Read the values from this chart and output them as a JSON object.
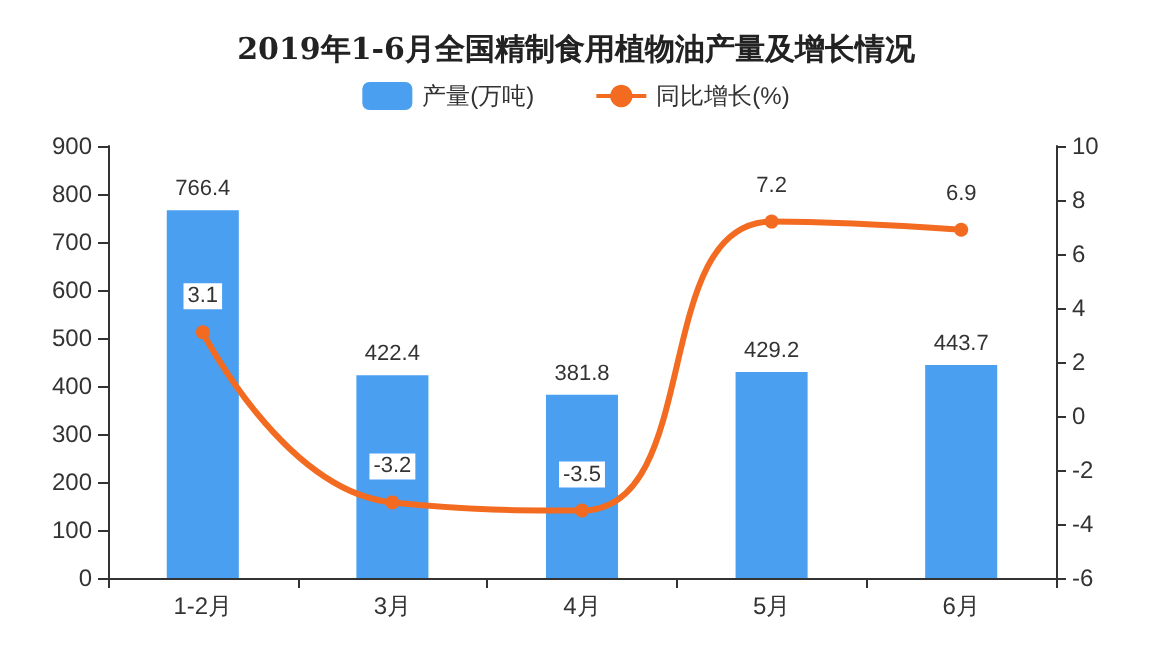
{
  "chart_data": {
    "type": "bar",
    "title": "2019年1-6月全国精制食用植物油产量及增长情况",
    "categories": [
      "1-2月",
      "3月",
      "4月",
      "5月",
      "6月"
    ],
    "series": [
      {
        "name": "产量(万吨)",
        "color": "#4a9ff0",
        "values": [
          766.4,
          422.4,
          381.8,
          429.2,
          443.7
        ]
      },
      {
        "name": "同比增长(%)",
        "type": "line",
        "axis": "y2",
        "color": "#f26b21",
        "marker": "circle",
        "values": [
          3.1,
          -3.2,
          -3.5,
          7.2,
          6.9
        ]
      }
    ],
    "ylim": [
      0,
      900
    ],
    "yticks": [
      0,
      100,
      200,
      300,
      400,
      500,
      600,
      700,
      800,
      900
    ],
    "y2lim": [
      -6,
      10
    ],
    "y2ticks": [
      -6,
      -4,
      -2,
      0,
      2,
      4,
      6,
      8,
      10
    ],
    "data_labels": true,
    "legend": "top",
    "grid": false
  }
}
